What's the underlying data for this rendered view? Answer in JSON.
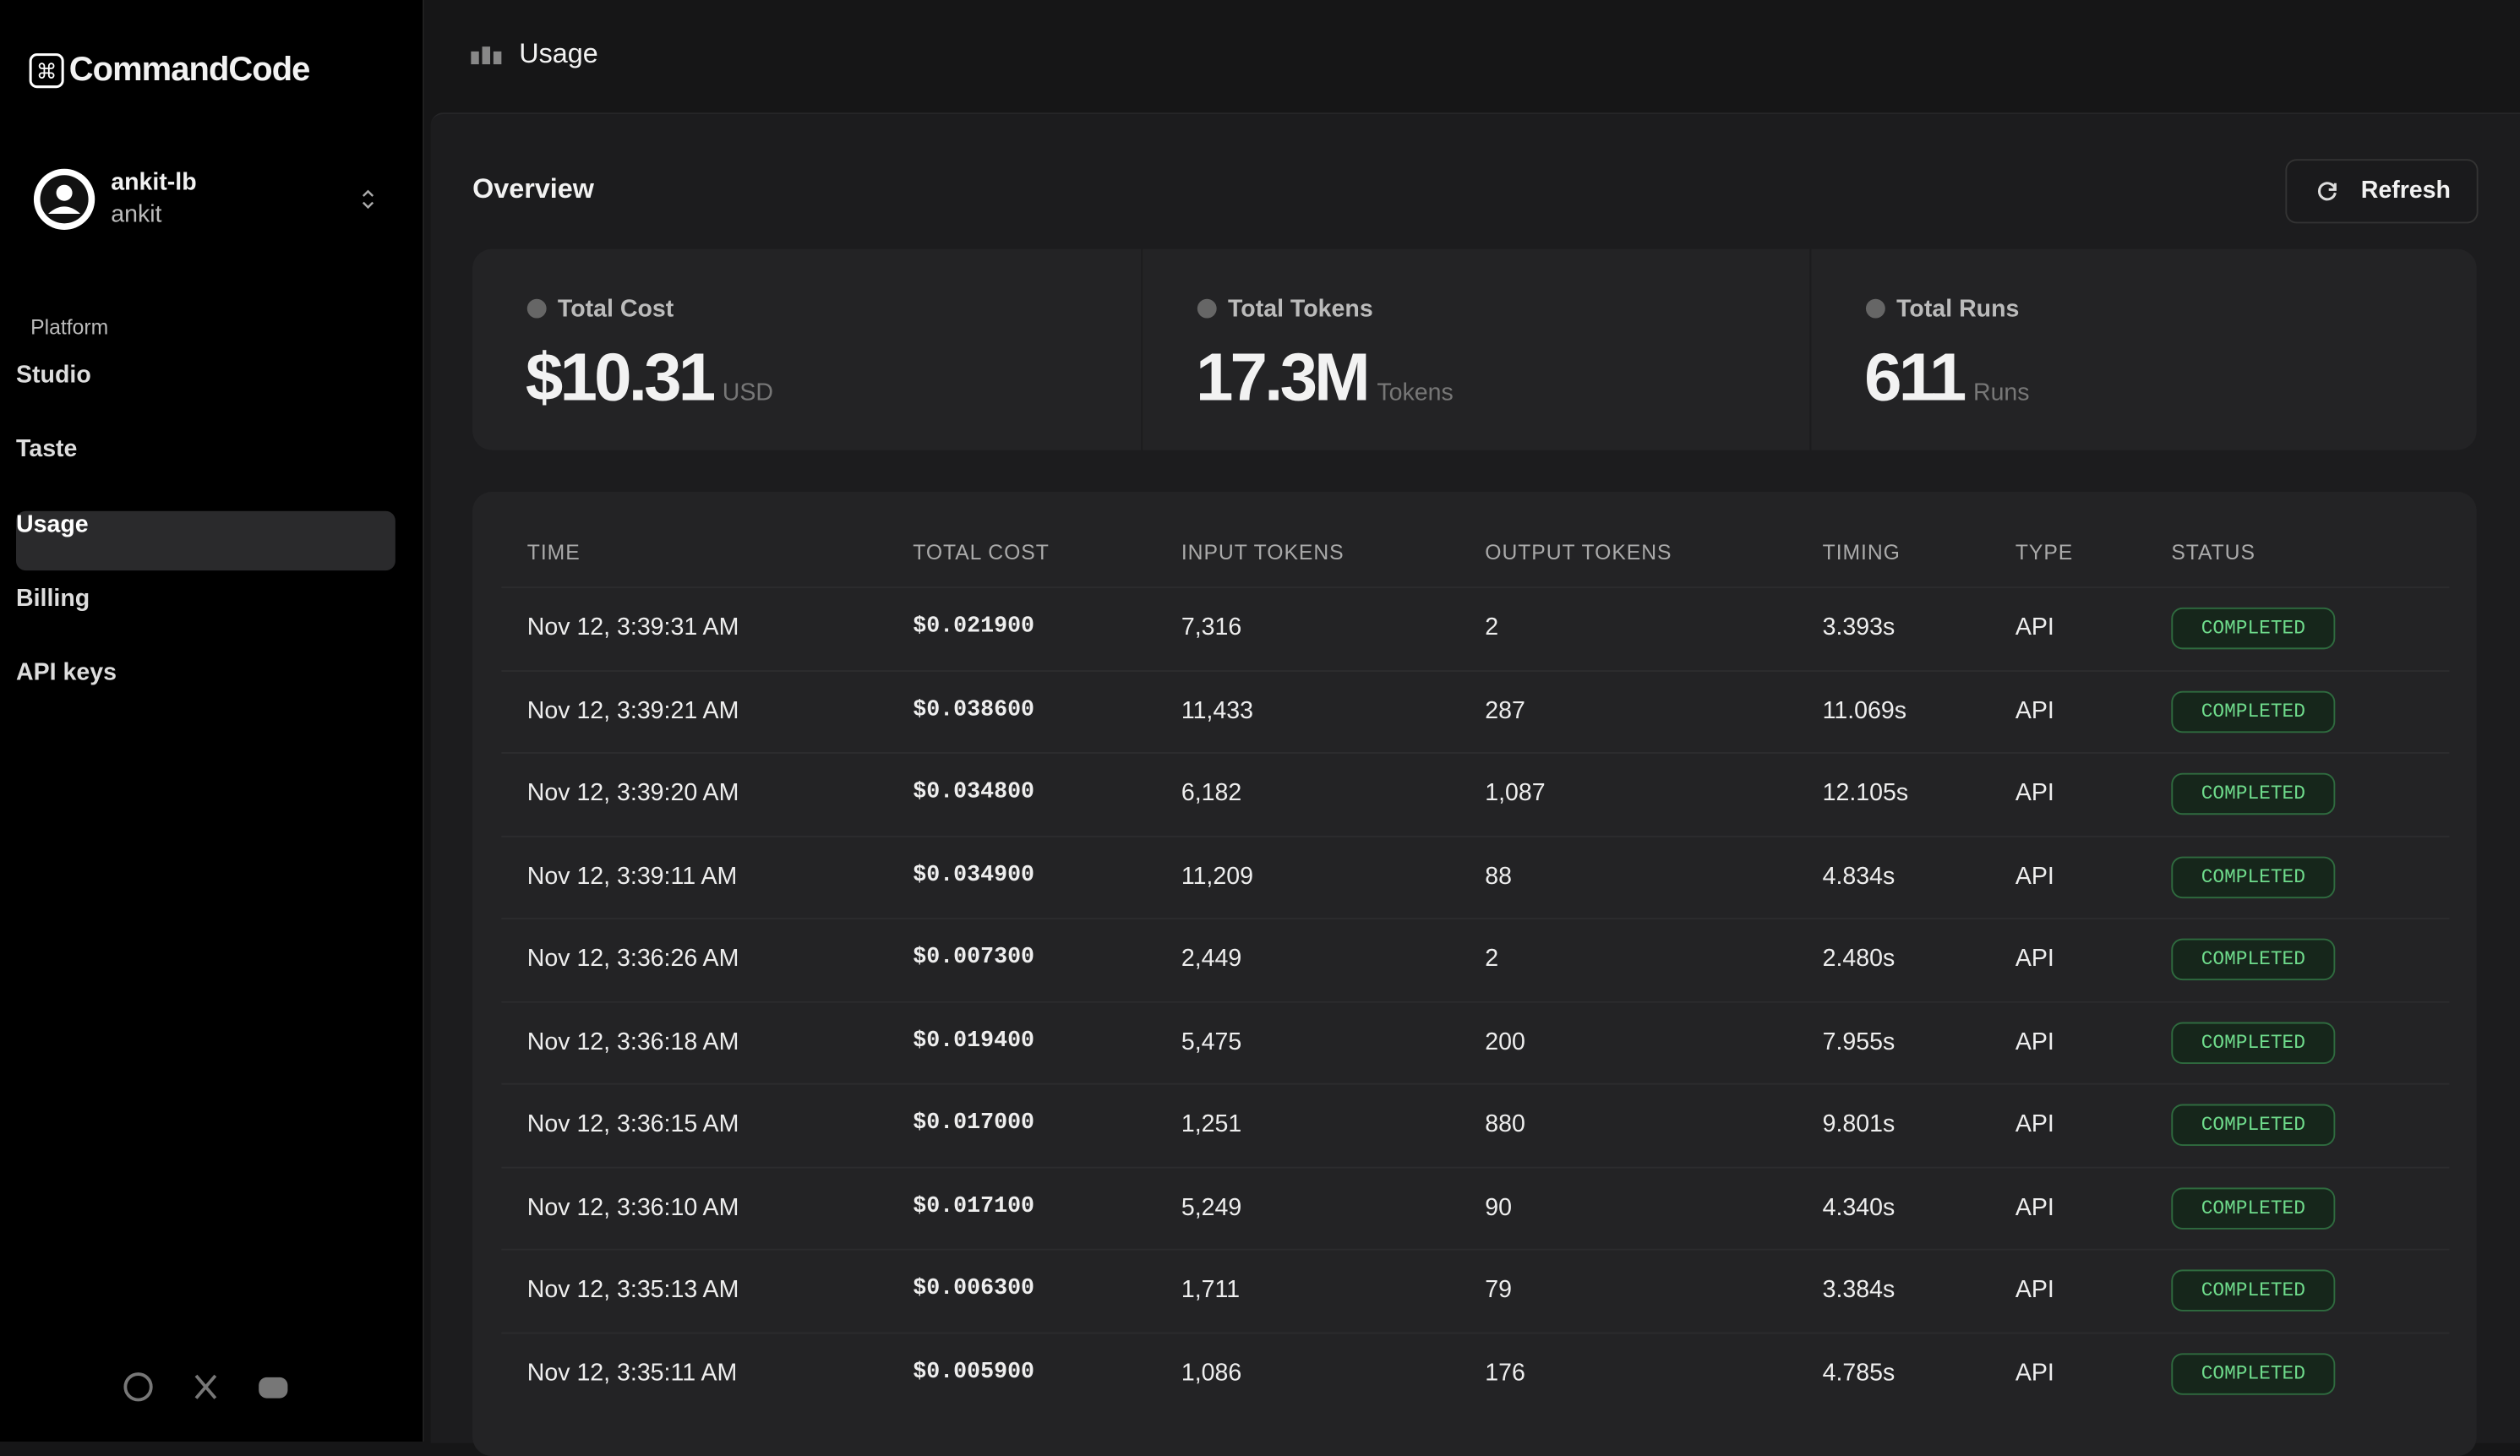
{
  "sidebar": {
    "brand": "CommandCode",
    "user": {
      "name": "ankit-lb",
      "handle": "ankit"
    },
    "section": "Platform",
    "nav": [
      "Studio",
      "Taste",
      "Usage",
      "Billing",
      "API keys"
    ]
  },
  "header": {
    "title": "Usage"
  },
  "overview": {
    "title": "Overview",
    "refresh": "Refresh",
    "stats": [
      {
        "label": "Total Cost",
        "value": "$10.31",
        "unit": "USD"
      },
      {
        "label": "Total Tokens",
        "value": "17.3M",
        "unit": "Tokens"
      },
      {
        "label": "Total Runs",
        "value": "611",
        "unit": "Runs"
      }
    ]
  },
  "table": {
    "headers": [
      "TIME",
      "TOTAL COST",
      "INPUT TOKENS",
      "OUTPUT TOKENS",
      "TIMING",
      "TYPE",
      "STATUS"
    ],
    "rows": [
      [
        "Nov 12, 3:39:31 AM",
        "$0.021900",
        "7,316",
        "2",
        "3.393s",
        "API",
        "COMPLETED"
      ],
      [
        "Nov 12, 3:39:21 AM",
        "$0.038600",
        "11,433",
        "287",
        "11.069s",
        "API",
        "COMPLETED"
      ],
      [
        "Nov 12, 3:39:20 AM",
        "$0.034800",
        "6,182",
        "1,087",
        "12.105s",
        "API",
        "COMPLETED"
      ],
      [
        "Nov 12, 3:39:11 AM",
        "$0.034900",
        "11,209",
        "88",
        "4.834s",
        "API",
        "COMPLETED"
      ],
      [
        "Nov 12, 3:36:26 AM",
        "$0.007300",
        "2,449",
        "2",
        "2.480s",
        "API",
        "COMPLETED"
      ],
      [
        "Nov 12, 3:36:18 AM",
        "$0.019400",
        "5,475",
        "200",
        "7.955s",
        "API",
        "COMPLETED"
      ],
      [
        "Nov 12, 3:36:15 AM",
        "$0.017000",
        "1,251",
        "880",
        "9.801s",
        "API",
        "COMPLETED"
      ],
      [
        "Nov 12, 3:36:10 AM",
        "$0.017100",
        "5,249",
        "90",
        "4.340s",
        "API",
        "COMPLETED"
      ],
      [
        "Nov 12, 3:35:13 AM",
        "$0.006300",
        "1,711",
        "79",
        "3.384s",
        "API",
        "COMPLETED"
      ],
      [
        "Nov 12, 3:35:11 AM",
        "$0.005900",
        "1,086",
        "176",
        "4.785s",
        "API",
        "COMPLETED"
      ]
    ]
  }
}
